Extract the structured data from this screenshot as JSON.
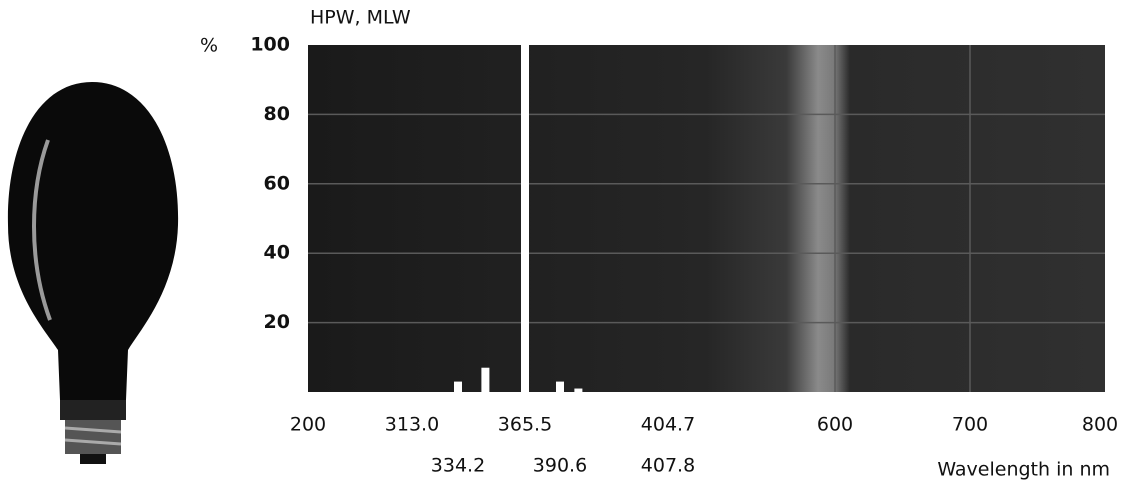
{
  "chart_data": {
    "type": "bar",
    "title": "HPW, MLW",
    "y_label": "%",
    "x_label": "Wavelength in nm",
    "x": [
      334.2,
      347,
      365.5,
      390.6,
      393
    ],
    "values": [
      3,
      7,
      100,
      3,
      1
    ],
    "color": "#ffffff",
    "ylim": [
      0,
      100
    ],
    "yticks": [
      20,
      40,
      60,
      80,
      100
    ],
    "xlim": [
      200,
      800
    ],
    "xticks": [
      200,
      {
        "value": 313,
        "label": "313.0"
      },
      334.2,
      365.5,
      390.6,
      404.7,
      407.8,
      600,
      700,
      800
    ],
    "grid": true
  }
}
